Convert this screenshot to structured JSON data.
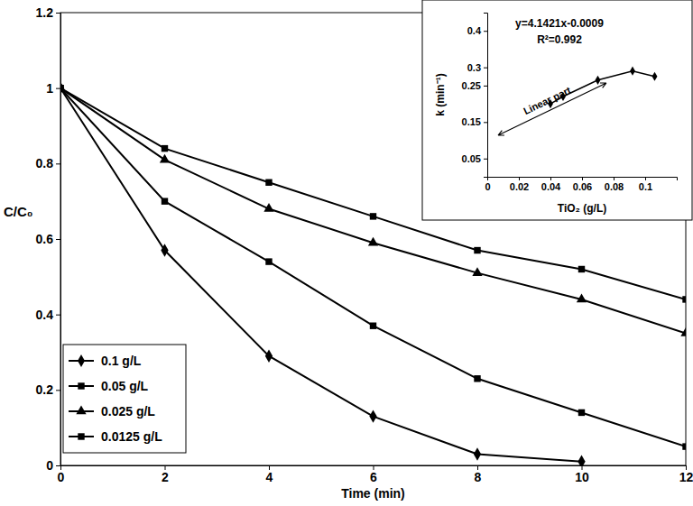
{
  "chart_data": [
    {
      "type": "line",
      "x_label": "Time (min)",
      "y_label": "C/C₀",
      "x": [
        0,
        2,
        4,
        6,
        8,
        10,
        12
      ],
      "series": [
        {
          "name": "0.1 g/L",
          "color": "#000000",
          "marker": "diamond",
          "values": [
            1,
            0.57,
            0.29,
            0.13,
            0.03,
            0.01,
            null
          ]
        },
        {
          "name": "0.05 g/L",
          "color": "#000000",
          "marker": "square",
          "values": [
            1,
            0.7,
            0.54,
            0.37,
            0.23,
            0.14,
            0.05
          ]
        },
        {
          "name": "0.025 g/L",
          "color": "#000000",
          "marker": "triangle",
          "values": [
            1,
            0.81,
            0.68,
            0.59,
            0.51,
            0.44,
            0.35
          ]
        },
        {
          "name": "0.0125 g/L",
          "color": "#000000",
          "marker": "square",
          "values": [
            1,
            0.84,
            0.75,
            0.66,
            0.57,
            0.52,
            0.44
          ]
        }
      ],
      "xlim": [
        0,
        12
      ],
      "xticks": [
        0,
        2,
        4,
        6,
        8,
        10,
        12
      ],
      "ylim": [
        0,
        1.2
      ],
      "yticks": [
        0,
        0.2,
        0.4,
        0.6,
        0.8,
        1,
        1.2
      ],
      "grid": false,
      "legend": "lower left"
    },
    {
      "type": "line",
      "x_label": "TiO₂ (g/L)",
      "y_label": "k (min⁻¹)",
      "annotations": [
        "y=4.1421x-0.0009",
        "R²=0.992",
        "Linear part"
      ],
      "x": [
        0.04,
        0.048,
        0.07,
        0.092,
        0.106
      ],
      "values": [
        0.2,
        0.22,
        0.265,
        0.29,
        0.275
      ],
      "color": "#000000",
      "marker": "diamond",
      "xlim": [
        0,
        0.12
      ],
      "xticks": [
        0,
        0.02,
        0.04,
        0.06,
        0.08,
        0.1
      ],
      "ylim": [
        0,
        0.45
      ],
      "yticks": [
        0.05,
        0.15,
        0.25,
        0.3,
        0.4
      ],
      "grid": false
    }
  ]
}
